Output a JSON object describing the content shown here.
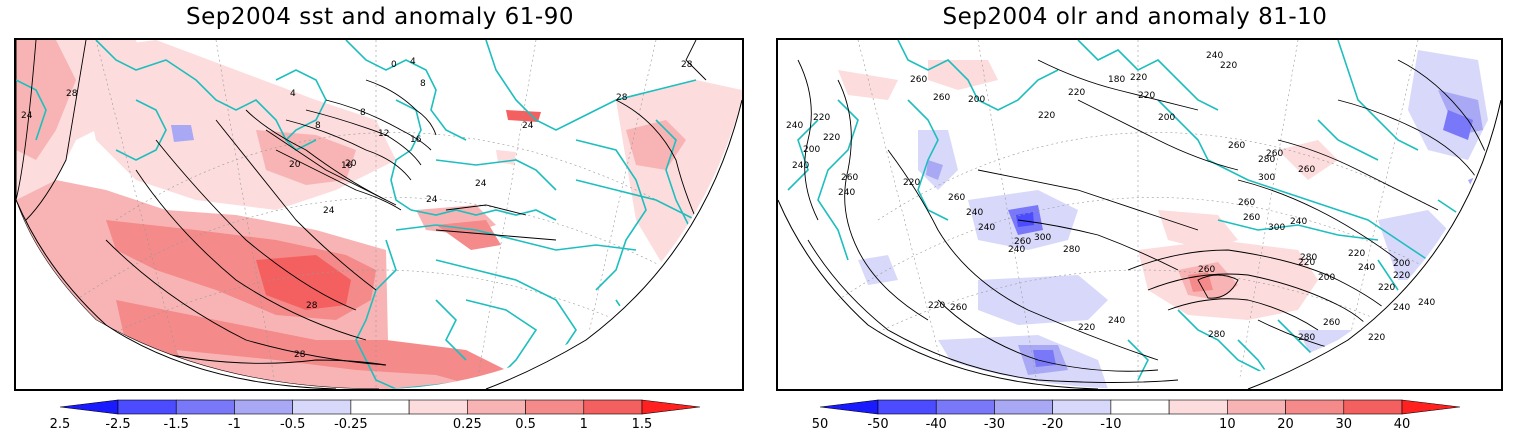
{
  "panels": [
    {
      "title": "Sep2004 sst and anomaly 61-90",
      "contour_labels": [
        "24",
        "28",
        "28",
        "28",
        "20",
        "24",
        "20",
        "16",
        "12",
        "8",
        "8",
        "4",
        "0",
        "4",
        "8",
        "16",
        "24",
        "24",
        "24",
        "28",
        "28"
      ],
      "colorbar_ticks": [
        "-2.5",
        "-1.5",
        "-1",
        "-0.5",
        "-0.25",
        "0.25",
        "0.5",
        "1",
        "1.5",
        "2.5"
      ]
    },
    {
      "title": "Sep2004 olr and anomaly 81-10",
      "contour_labels": [
        "240",
        "260",
        "220",
        "220",
        "200",
        "260",
        "180",
        "240",
        "220",
        "220",
        "200",
        "220",
        "220",
        "240",
        "260",
        "200",
        "220",
        "260",
        "240",
        "220",
        "240",
        "240",
        "260",
        "240",
        "260",
        "260",
        "220",
        "260",
        "300",
        "280",
        "260",
        "240",
        "260",
        "300",
        "280",
        "220",
        "240",
        "220",
        "240",
        "220",
        "200",
        "220",
        "240",
        "260",
        "240",
        "220",
        "280",
        "280",
        "220",
        "200",
        "280",
        "300",
        "260",
        "260"
      ],
      "colorbar_ticks": [
        "-50",
        "-40",
        "-30",
        "-20",
        "-10",
        "10",
        "20",
        "30",
        "40",
        "50"
      ]
    }
  ],
  "colors": {
    "negative": [
      "#1a1aff",
      "#4b4bff",
      "#7878f8",
      "#a8a8f4",
      "#d8d8fa"
    ],
    "positive": [
      "#fcdcdc",
      "#f8b4b4",
      "#f48a8a",
      "#f46060",
      "#ff2020"
    ],
    "coastline": "#1ebebe",
    "contour": "#000000"
  }
}
